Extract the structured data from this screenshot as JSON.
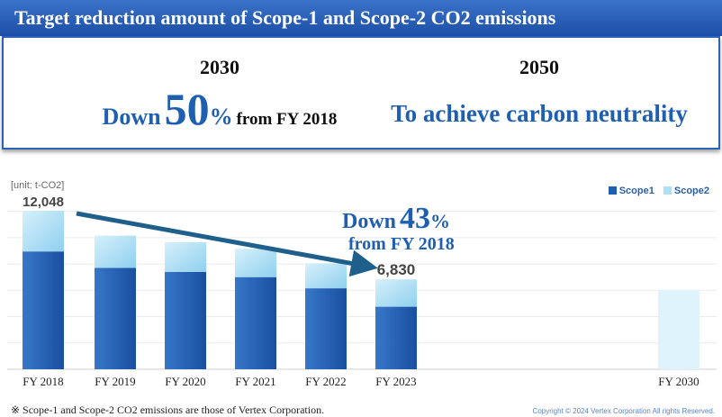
{
  "banner": {
    "title": "Target reduction amount of Scope-1 and Scope-2 CO2 emissions"
  },
  "targets": [
    {
      "year": "2030",
      "prefix": "Down",
      "big": "50",
      "suffix": "%",
      "tail": "from FY 2018"
    },
    {
      "year": "2050",
      "text": "To achieve carbon neutrality"
    }
  ],
  "unit_label": "[unit: t-CO2]",
  "legend": {
    "scope1": "Scope1",
    "scope2": "Scope2"
  },
  "callout": {
    "prefix": "Down",
    "big": "43",
    "suffix": "%",
    "line2": "from FY 2018"
  },
  "footnote": "※ Scope-1 and Scope-2 CO2 emissions are those of Vertex Corporation.",
  "copyright": "Copyright © 2024 Vertex Corporation All rights Reserved.",
  "colors": {
    "banner": "#1d4fa6",
    "scope1": "#1f5fb0",
    "scope2": "#aee0f6",
    "accent": "#1f5fb0",
    "arrow": "#1e5f8c"
  },
  "chart_data": {
    "type": "bar",
    "stacked": true,
    "categories": [
      "FY 2018",
      "FY 2019",
      "FY 2020",
      "FY 2021",
      "FY 2022",
      "FY 2023",
      "FY 2030"
    ],
    "series": [
      {
        "name": "Scope1",
        "values": [
          8950,
          7700,
          7400,
          7000,
          6150,
          4750,
          null
        ]
      },
      {
        "name": "Scope2",
        "values": [
          3098,
          2450,
          2250,
          2150,
          1900,
          2080,
          6024
        ]
      }
    ],
    "data_labels": {
      "FY 2018": "12,048",
      "FY 2023": "6,830"
    },
    "ylim": [
      0,
      13000
    ],
    "grid": true,
    "legend_position": "top-right"
  }
}
